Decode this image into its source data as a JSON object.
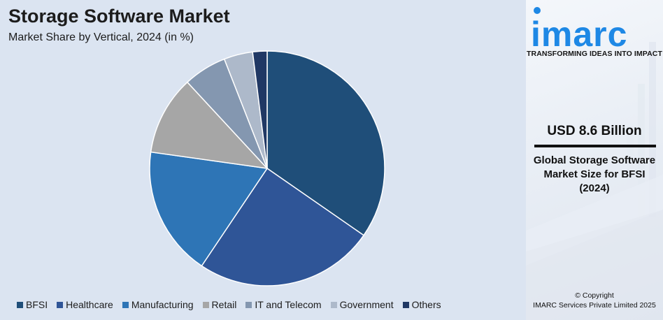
{
  "header": {
    "title": "Storage Software Market",
    "subtitle": "Market Share by Vertical, 2024 (in %)"
  },
  "chart_data": {
    "type": "pie",
    "title": "Storage Software Market",
    "subtitle": "Market Share by Vertical, 2024 (in %)",
    "categories": [
      "BFSI",
      "Healthcare",
      "Manufacturing",
      "Retail",
      "IT and Telecom",
      "Government",
      "Others"
    ],
    "values": [
      35,
      25,
      18,
      11,
      6,
      4,
      2
    ],
    "colors": [
      "#1f4e79",
      "#2f5597",
      "#2e75b6",
      "#a6a6a6",
      "#8497b0",
      "#adb9ca",
      "#203864"
    ],
    "legend_position": "bottom",
    "start_angle": "12 o'clock, clockwise"
  },
  "legend": {
    "items": [
      {
        "label": "BFSI",
        "color": "#1f4e79"
      },
      {
        "label": "Healthcare",
        "color": "#2f5597"
      },
      {
        "label": "Manufacturing",
        "color": "#2e75b6"
      },
      {
        "label": "Retail",
        "color": "#a6a6a6"
      },
      {
        "label": "IT and Telecom",
        "color": "#8497b0"
      },
      {
        "label": "Government",
        "color": "#adb9ca"
      },
      {
        "label": "Others",
        "color": "#203864"
      }
    ]
  },
  "sidebar": {
    "brand": "imarc",
    "brand_color": "#1e88e5",
    "tagline": "TRANSFORMING IDEAS INTO IMPACT",
    "value": "USD 8.6 Billion",
    "description": "Global Storage Software Market Size for BFSI (2024)",
    "copyright_line1": "© Copyright",
    "copyright_line2": "IMARC Services Private Limited 2025"
  }
}
